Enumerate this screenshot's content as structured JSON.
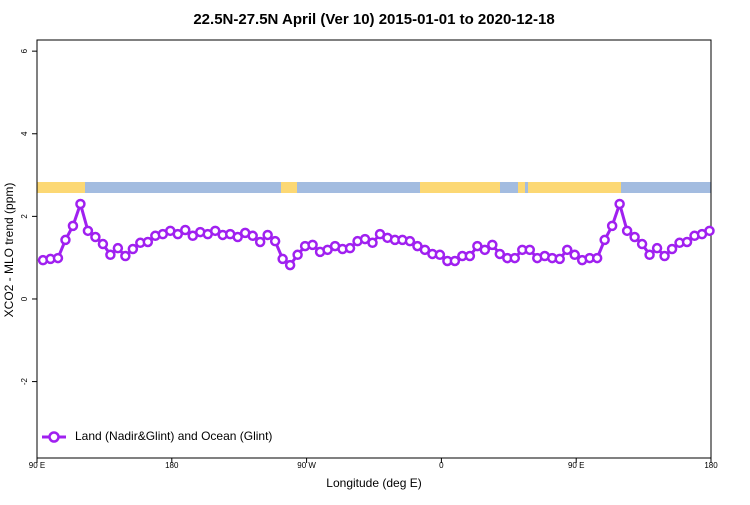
{
  "chart_data": {
    "type": "line",
    "title": "22.5N-27.5N April (Ver 10)   2015-01-01 to 2020-12-18",
    "x_label": "Longitude (deg E)",
    "y_label": "XCO2 - MLO trend (ppm)",
    "x": [
      94,
      99,
      104,
      109,
      114,
      119,
      124,
      129,
      134,
      139,
      144,
      149,
      154,
      159,
      164,
      169,
      174,
      179,
      184,
      189,
      194,
      199,
      204,
      209,
      214,
      219,
      224,
      229,
      234,
      239,
      244,
      249,
      254,
      259,
      264,
      269,
      274,
      279,
      284,
      289,
      294,
      299,
      304,
      309,
      314,
      319,
      324,
      329,
      334,
      339,
      344,
      349,
      354,
      359,
      364,
      369,
      374,
      379,
      384,
      389,
      394,
      399,
      404,
      409,
      414,
      419,
      424,
      429,
      434,
      439,
      444,
      449,
      454,
      459,
      464,
      469,
      474,
      479,
      484,
      489,
      494,
      499,
      504,
      509,
      514,
      519,
      524,
      529,
      534,
      539
    ],
    "series": [
      {
        "name": "Land (Nadir&Glint) and Ocean (Glint)",
        "color": "#a020f0",
        "values": [
          0.94,
          0.97,
          0.99,
          1.43,
          1.77,
          2.3,
          1.65,
          1.5,
          1.33,
          1.07,
          1.23,
          1.04,
          1.21,
          1.36,
          1.38,
          1.53,
          1.57,
          1.65,
          1.57,
          1.67,
          1.53,
          1.62,
          1.57,
          1.65,
          1.55,
          1.57,
          1.5,
          1.6,
          1.53,
          1.38,
          1.55,
          1.4,
          0.97,
          0.82,
          1.07,
          1.28,
          1.31,
          1.14,
          1.19,
          1.28,
          1.21,
          1.23,
          1.4,
          1.45,
          1.36,
          1.57,
          1.48,
          1.43,
          1.43,
          1.4,
          1.28,
          1.19,
          1.09,
          1.07,
          0.92,
          0.92,
          1.04,
          1.04,
          1.28,
          1.19,
          1.31,
          1.09,
          0.99,
          0.99,
          1.19,
          1.19,
          0.99,
          1.04,
          0.99,
          0.97,
          1.19,
          1.07,
          0.94,
          0.99,
          0.99,
          1.43,
          1.77,
          2.3,
          1.65,
          1.5,
          1.33,
          1.07,
          1.23,
          1.04,
          1.21,
          1.36,
          1.38,
          1.53,
          1.57,
          1.65
        ]
      }
    ],
    "xlim": [
      90,
      540
    ],
    "xticks": [
      {
        "value": 90,
        "label": "90 E"
      },
      180,
      {
        "value": 270,
        "label": "90 W"
      },
      {
        "value": 360,
        "label": "0"
      },
      {
        "value": 450,
        "label": "90 E"
      },
      {
        "value": 540,
        "label": "180"
      }
    ],
    "ylim": [
      -3.85,
      6.27
    ],
    "yticks": [
      -2,
      0,
      2,
      4,
      6
    ],
    "legend": "bottom-left"
  }
}
